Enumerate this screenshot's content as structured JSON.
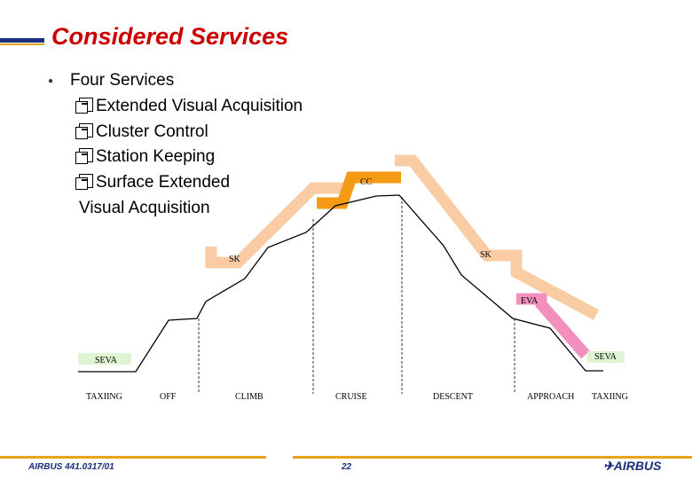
{
  "header": {
    "title": "Considered Services"
  },
  "bullet": {
    "heading": "Four Services",
    "items": [
      "Extended Visual Acquisition",
      "Cluster Control",
      "Station Keeping",
      "Surface Extended"
    ],
    "continuation": "Visual Acquisition"
  },
  "diagram": {
    "band_labels": {
      "cc": "CC",
      "sk_left": "SK",
      "sk_right": "SK",
      "eva": "EVA",
      "seva_left": "SEVA",
      "seva_right": "SEVA"
    },
    "phases": [
      "TAXIING",
      "OFF",
      "CLIMB",
      "CRUISE",
      "DESCENT",
      "APPROACH",
      "TAXIING"
    ],
    "colors": {
      "sk_band": "#f9cca3",
      "cc_band": "#f59a14",
      "eva_band": "#f28fbd",
      "seva_band": "#dff4d3",
      "title": "#cc0000",
      "footer_rule": "#e8a31a"
    }
  },
  "footer": {
    "doc_ref": "AIRBUS 441.0317/01",
    "page": "22",
    "logo": "AIRBUS"
  }
}
